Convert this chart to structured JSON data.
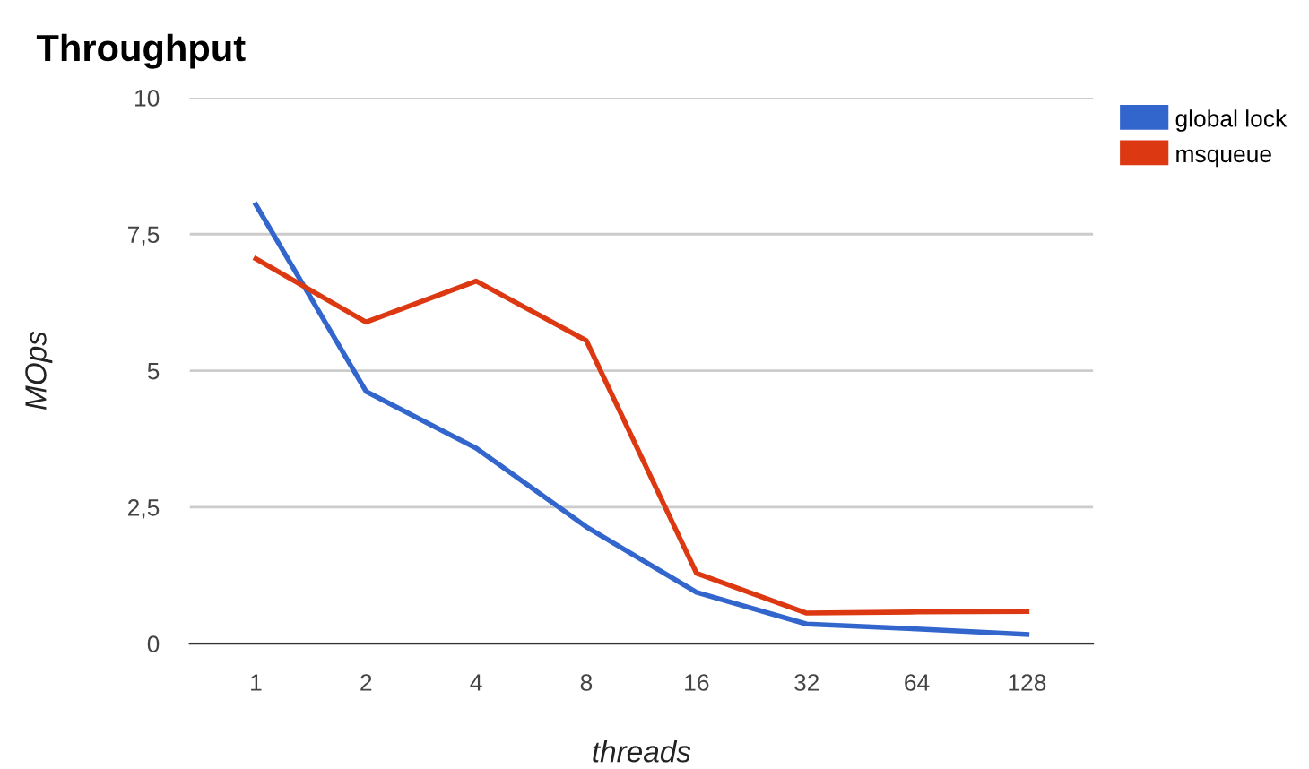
{
  "chart_data": {
    "type": "line",
    "title": "Throughput",
    "xlabel": "threads",
    "ylabel": "MOps",
    "categories": [
      "1",
      "2",
      "4",
      "8",
      "16",
      "32",
      "64",
      "128"
    ],
    "series": [
      {
        "name": "global lock",
        "color": "#3366cc",
        "values": [
          8.04,
          4.62,
          3.58,
          2.14,
          0.94,
          0.36,
          0.27,
          0.17
        ]
      },
      {
        "name": "msqueue",
        "color": "#dc3912",
        "values": [
          7.05,
          5.89,
          6.64,
          5.55,
          1.29,
          0.56,
          0.58,
          0.59
        ]
      }
    ],
    "ylim": [
      0,
      10
    ],
    "yticks": [
      0,
      {
        "value": 2.5,
        "label": "2,5"
      },
      5,
      {
        "value": 7.5,
        "label": "7,5"
      },
      10
    ],
    "grid": "y",
    "legend": "top right",
    "marker": "none",
    "line_style": "solid"
  }
}
